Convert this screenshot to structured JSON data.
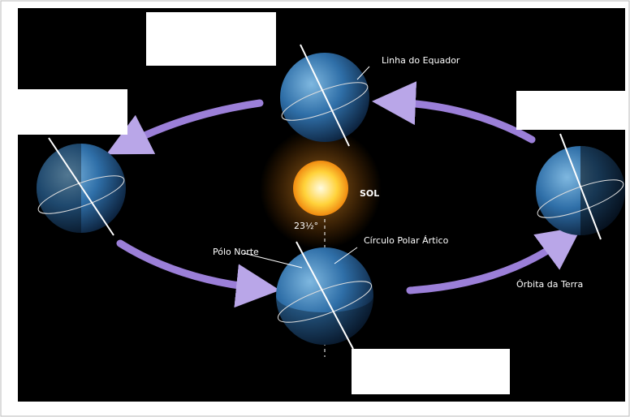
{
  "labels": {
    "equator": "Linha do Equador",
    "sun": "SOL",
    "tilt": "23½°",
    "north_pole": "Pólo Norte",
    "arctic_circle": "Círculo Polar Ártico",
    "orbit": "Órbita da Terra"
  }
}
